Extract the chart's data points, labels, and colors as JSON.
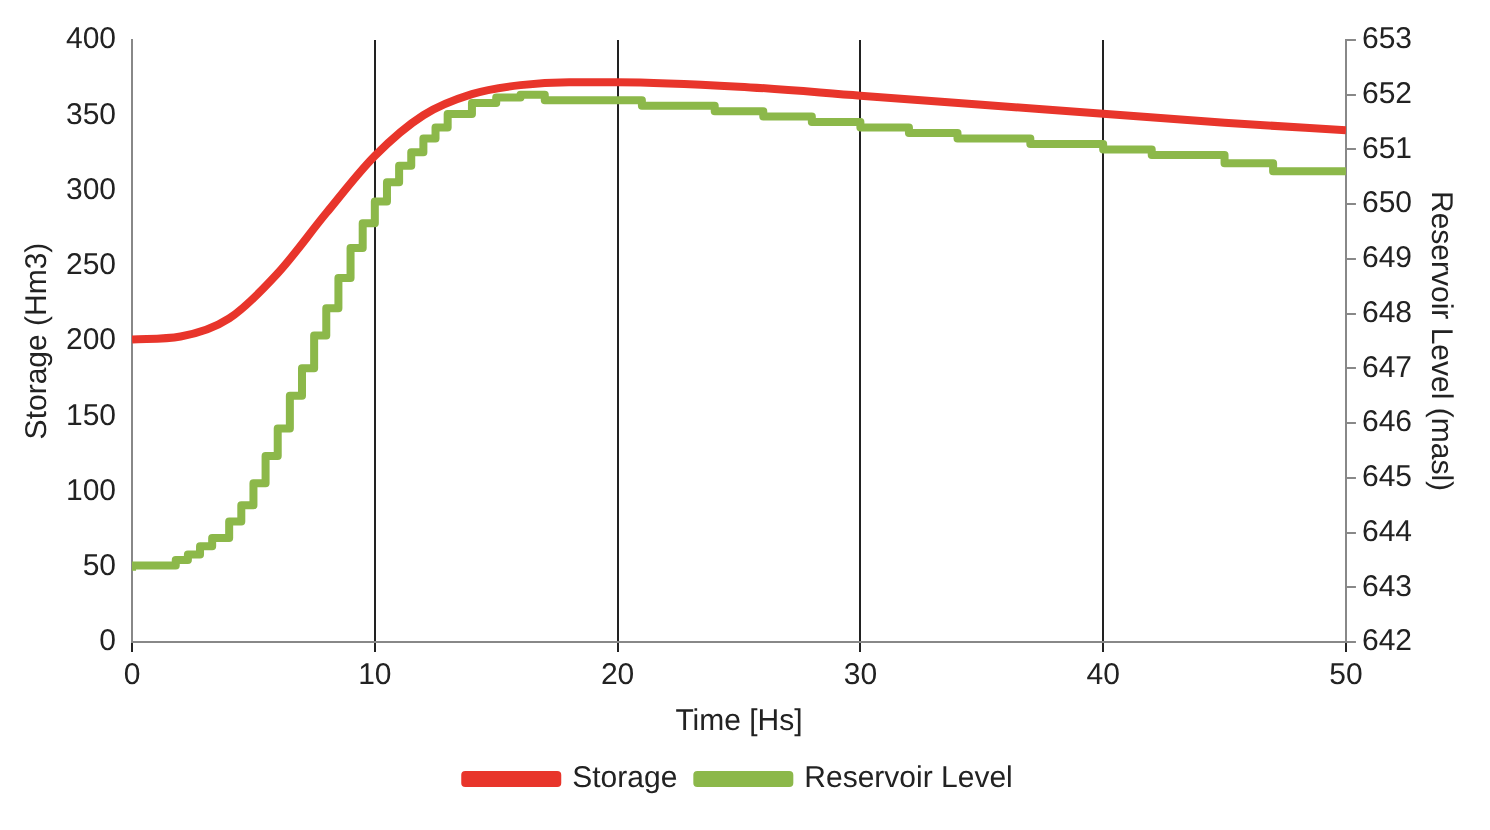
{
  "chart_data": {
    "type": "line",
    "xlabel": "Time [Hs]",
    "ylabel": "Storage (Hm3)",
    "y2label": "Reservoir Level (masl)",
    "xlim": [
      0,
      50
    ],
    "xticks": [
      0,
      10,
      20,
      30,
      40,
      50
    ],
    "ylim": [
      0,
      400
    ],
    "yticks": [
      0,
      50,
      100,
      150,
      200,
      250,
      300,
      350,
      400
    ],
    "y2lim": [
      642,
      653
    ],
    "y2ticks": [
      642,
      643,
      644,
      645,
      646,
      647,
      648,
      649,
      650,
      651,
      652,
      653
    ],
    "grid": "x",
    "legend": "bottom",
    "marker": "none",
    "series": [
      {
        "name": "Storage",
        "color": "#e8352b",
        "type": "line",
        "x": [
          0,
          2,
          4,
          6,
          8,
          10,
          12,
          14,
          16,
          18,
          20,
          25,
          30,
          35,
          40,
          45,
          50
        ],
        "values": [
          201,
          203,
          215,
          245,
          285,
          323,
          350,
          364,
          370,
          372,
          372,
          369,
          363,
          357,
          351,
          345,
          340
        ]
      },
      {
        "name": "Reservoir Level",
        "color": "#8cb84a",
        "type": "step",
        "axis": "y2",
        "x": [
          0,
          1.8,
          2.3,
          2.8,
          3.3,
          4,
          4.5,
          5,
          5.5,
          6,
          6.5,
          7,
          7.5,
          8,
          8.5,
          9,
          9.5,
          10,
          10.5,
          11,
          11.5,
          12,
          12.5,
          13,
          14,
          15,
          16,
          17,
          21,
          24,
          26,
          28,
          30,
          32,
          34,
          37,
          40,
          42,
          45,
          47,
          49,
          50
        ],
        "values": [
          643.3,
          643.4,
          643.5,
          643.6,
          643.75,
          643.9,
          644.2,
          644.5,
          644.9,
          645.4,
          645.9,
          646.5,
          647.0,
          647.6,
          648.1,
          648.65,
          649.2,
          649.65,
          650.05,
          650.4,
          650.7,
          650.95,
          651.2,
          651.4,
          651.65,
          651.85,
          651.95,
          652.0,
          651.9,
          651.8,
          651.7,
          651.6,
          651.5,
          651.4,
          651.3,
          651.2,
          651.1,
          651.0,
          650.9,
          650.75,
          650.6,
          650.6
        ]
      }
    ]
  }
}
